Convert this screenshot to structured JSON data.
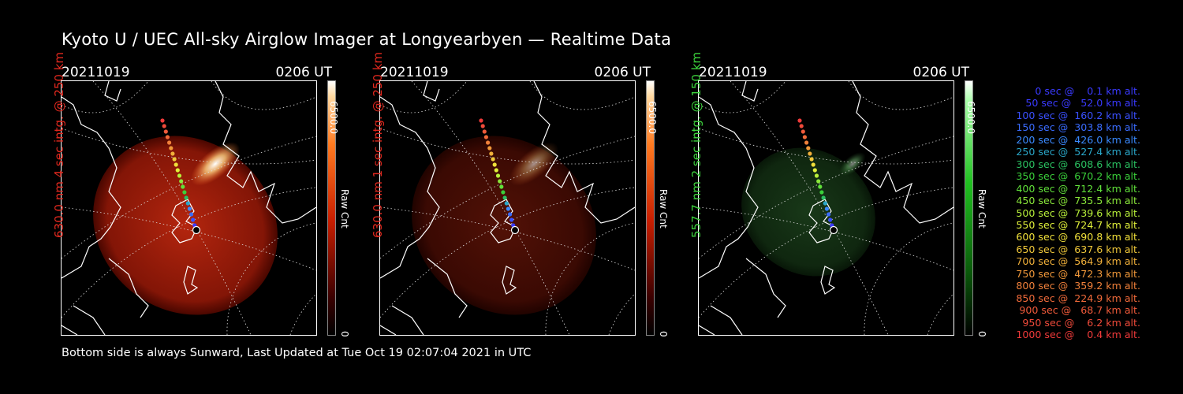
{
  "title": "Kyoto U / UEC All-sky Airglow Imager at Longyearbyen — Realtime Data",
  "footer": "Bottom side is always Sunward, Last Updated at Tue Oct 19 02:07:04 2021 in UTC",
  "panels": [
    {
      "date": "20211019",
      "time": "0206 UT",
      "label": "630.0 nm 4 sec intg. @ 250 km",
      "label_color": "#e0281e",
      "cbar_max": "6500.0",
      "cbar_unit": "Raw Cnt",
      "cbar_min": "0",
      "colormap": "red",
      "intensity": 1.0
    },
    {
      "date": "20211019",
      "time": "0206 UT",
      "label": "630.0 nm 1 sec intg. @ 250 km",
      "label_color": "#e0281e",
      "cbar_max": "6500.0",
      "cbar_unit": "Raw Cnt",
      "cbar_min": "0",
      "colormap": "red",
      "intensity": 0.35
    },
    {
      "date": "20211019",
      "time": "0206 UT",
      "label": "557.7 nm 2 sec intg. @ 150 km",
      "label_color": "#3cd23c",
      "cbar_max": "6500.0",
      "cbar_unit": "Raw Cnt",
      "cbar_min": "0",
      "colormap": "green",
      "intensity": 0.35
    }
  ],
  "legend": [
    {
      "text": "0 sec @    0.1 km alt.",
      "color": "#3a3aff"
    },
    {
      "text": "50 sec @   52.0 km alt.",
      "color": "#3a3aff"
    },
    {
      "text": "100 sec @  160.2 km alt.",
      "color": "#3a50ff"
    },
    {
      "text": "150 sec @  303.8 km alt.",
      "color": "#3a6cff"
    },
    {
      "text": "200 sec @  426.0 km alt.",
      "color": "#3a8aff"
    },
    {
      "text": "250 sec @  527.4 km alt.",
      "color": "#2aa6c8"
    },
    {
      "text": "300 sec @  608.6 km alt.",
      "color": "#2ac060"
    },
    {
      "text": "350 sec @  670.2 km alt.",
      "color": "#3ad03a"
    },
    {
      "text": "400 sec @  712.4 km alt.",
      "color": "#60e03a"
    },
    {
      "text": "450 sec @  735.5 km alt.",
      "color": "#8ae83a"
    },
    {
      "text": "500 sec @  739.6 km alt.",
      "color": "#b8f03a"
    },
    {
      "text": "550 sec @  724.7 km alt.",
      "color": "#e0f03a"
    },
    {
      "text": "600 sec @  690.8 km alt.",
      "color": "#f0e03a"
    },
    {
      "text": "650 sec @  637.6 km alt.",
      "color": "#f0c83a"
    },
    {
      "text": "700 sec @  564.9 km alt.",
      "color": "#f0b03a"
    },
    {
      "text": "750 sec @  472.3 km alt.",
      "color": "#f0983a"
    },
    {
      "text": "800 sec @  359.2 km alt.",
      "color": "#f0803a"
    },
    {
      "text": "850 sec @  224.9 km alt.",
      "color": "#f06a3a"
    },
    {
      "text": "900 sec @   68.7 km alt.",
      "color": "#f05a3a"
    },
    {
      "text": "950 sec @    6.2 km alt.",
      "color": "#f04a3a"
    },
    {
      "text": "1000 sec @    0.4 km alt.",
      "color": "#f03a3a"
    }
  ]
}
